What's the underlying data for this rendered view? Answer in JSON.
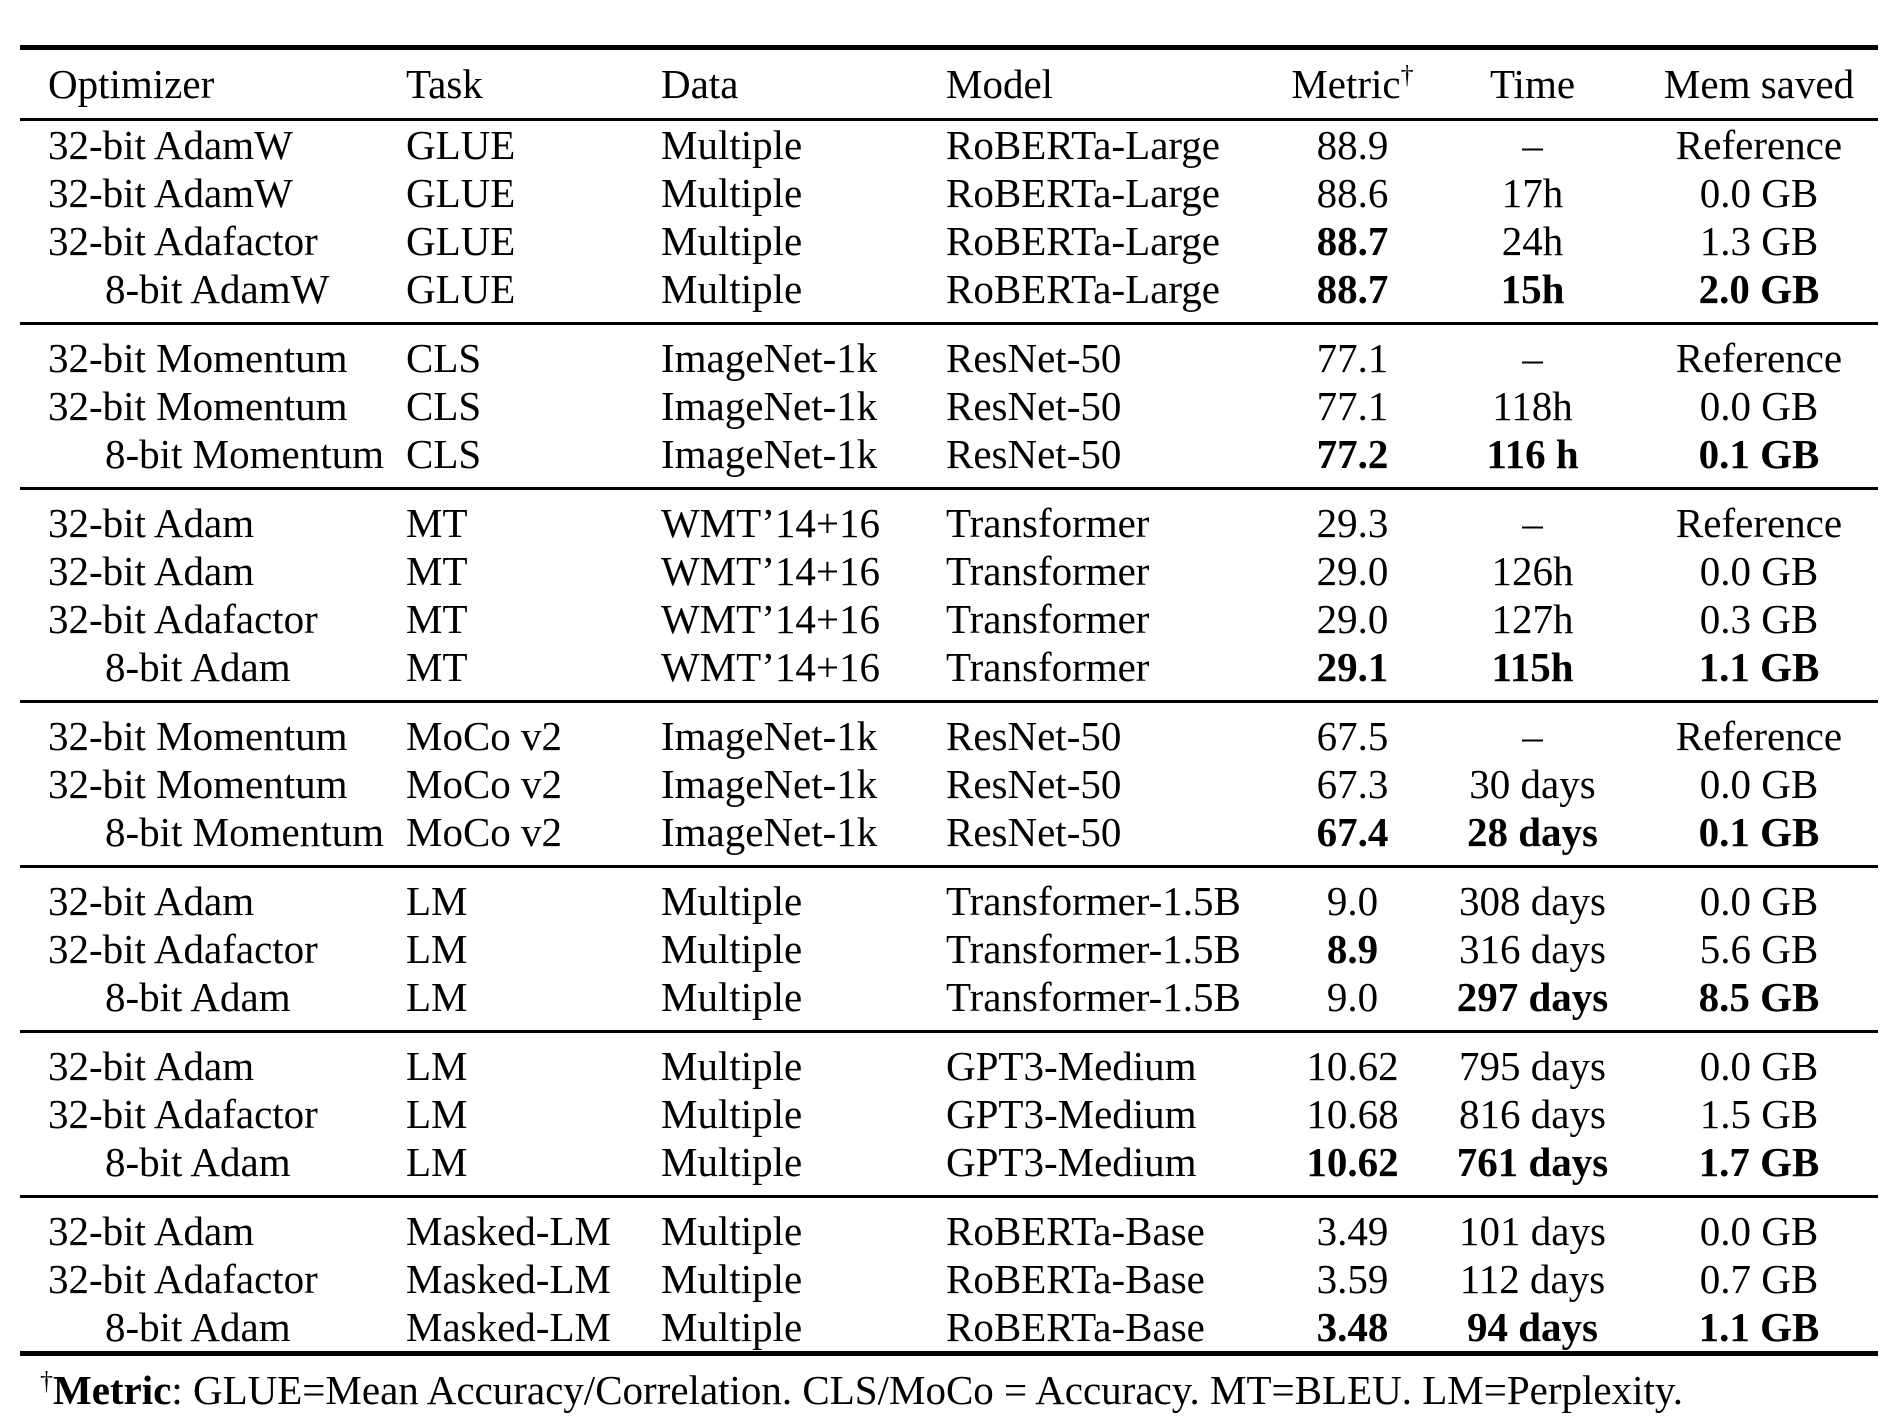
{
  "colors": {
    "text": "#000000",
    "background": "#ffffff",
    "rule": "#000000"
  },
  "table": {
    "headers": [
      "Optimizer",
      "Task",
      "Data",
      "Model",
      "Metric",
      "Time",
      "Mem saved"
    ],
    "metric_dagger": "†",
    "groups": [
      {
        "rows": [
          {
            "optimizer": "32-bit AdamW",
            "indent": false,
            "task": "GLUE",
            "data": "Multiple",
            "model": "RoBERTa-Large",
            "metric": "88.9",
            "metric_bold": false,
            "time": "–",
            "time_bold": false,
            "mem": "Reference",
            "mem_bold": false
          },
          {
            "optimizer": "32-bit AdamW",
            "indent": false,
            "task": "GLUE",
            "data": "Multiple",
            "model": "RoBERTa-Large",
            "metric": "88.6",
            "metric_bold": false,
            "time": "17h",
            "time_bold": false,
            "mem": "0.0 GB",
            "mem_bold": false
          },
          {
            "optimizer": "32-bit Adafactor",
            "indent": false,
            "task": "GLUE",
            "data": "Multiple",
            "model": "RoBERTa-Large",
            "metric": "88.7",
            "metric_bold": true,
            "time": "24h",
            "time_bold": false,
            "mem": "1.3 GB",
            "mem_bold": false
          },
          {
            "optimizer": "8-bit AdamW",
            "indent": true,
            "task": "GLUE",
            "data": "Multiple",
            "model": "RoBERTa-Large",
            "metric": "88.7",
            "metric_bold": true,
            "time": "15h",
            "time_bold": true,
            "mem": "2.0 GB",
            "mem_bold": true
          }
        ]
      },
      {
        "rows": [
          {
            "optimizer": "32-bit Momentum",
            "indent": false,
            "task": "CLS",
            "data": "ImageNet-1k",
            "model": "ResNet-50",
            "metric": "77.1",
            "metric_bold": false,
            "time": "–",
            "time_bold": false,
            "mem": "Reference",
            "mem_bold": false
          },
          {
            "optimizer": "32-bit Momentum",
            "indent": false,
            "task": "CLS",
            "data": "ImageNet-1k",
            "model": "ResNet-50",
            "metric": "77.1",
            "metric_bold": false,
            "time": "118h",
            "time_bold": false,
            "mem": "0.0 GB",
            "mem_bold": false
          },
          {
            "optimizer": "8-bit Momentum",
            "indent": true,
            "task": "CLS",
            "data": "ImageNet-1k",
            "model": "ResNet-50",
            "metric": "77.2",
            "metric_bold": true,
            "time": "116 h",
            "time_bold": true,
            "mem": "0.1 GB",
            "mem_bold": true
          }
        ]
      },
      {
        "rows": [
          {
            "optimizer": "32-bit Adam",
            "indent": false,
            "task": "MT",
            "data": "WMT’14+16",
            "model": "Transformer",
            "metric": "29.3",
            "metric_bold": false,
            "time": "–",
            "time_bold": false,
            "mem": "Reference",
            "mem_bold": false
          },
          {
            "optimizer": "32-bit Adam",
            "indent": false,
            "task": "MT",
            "data": "WMT’14+16",
            "model": "Transformer",
            "metric": "29.0",
            "metric_bold": false,
            "time": "126h",
            "time_bold": false,
            "mem": "0.0 GB",
            "mem_bold": false
          },
          {
            "optimizer": "32-bit Adafactor",
            "indent": false,
            "task": "MT",
            "data": "WMT’14+16",
            "model": "Transformer",
            "metric": "29.0",
            "metric_bold": false,
            "time": "127h",
            "time_bold": false,
            "mem": "0.3 GB",
            "mem_bold": false
          },
          {
            "optimizer": "8-bit Adam",
            "indent": true,
            "task": "MT",
            "data": "WMT’14+16",
            "model": "Transformer",
            "metric": "29.1",
            "metric_bold": true,
            "time": "115h",
            "time_bold": true,
            "mem": "1.1 GB",
            "mem_bold": true
          }
        ]
      },
      {
        "rows": [
          {
            "optimizer": "32-bit Momentum",
            "indent": false,
            "task": "MoCo v2",
            "data": "ImageNet-1k",
            "model": "ResNet-50",
            "metric": "67.5",
            "metric_bold": false,
            "time": "–",
            "time_bold": false,
            "mem": "Reference",
            "mem_bold": false
          },
          {
            "optimizer": "32-bit Momentum",
            "indent": false,
            "task": "MoCo v2",
            "data": "ImageNet-1k",
            "model": "ResNet-50",
            "metric": "67.3",
            "metric_bold": false,
            "time": "30 days",
            "time_bold": false,
            "mem": "0.0 GB",
            "mem_bold": false
          },
          {
            "optimizer": "8-bit Momentum",
            "indent": true,
            "task": "MoCo v2",
            "data": "ImageNet-1k",
            "model": "ResNet-50",
            "metric": "67.4",
            "metric_bold": true,
            "time": "28 days",
            "time_bold": true,
            "mem": "0.1 GB",
            "mem_bold": true
          }
        ]
      },
      {
        "rows": [
          {
            "optimizer": "32-bit Adam",
            "indent": false,
            "task": "LM",
            "data": "Multiple",
            "model": "Transformer-1.5B",
            "metric": "9.0",
            "metric_bold": false,
            "time": "308 days",
            "time_bold": false,
            "mem": "0.0 GB",
            "mem_bold": false
          },
          {
            "optimizer": "32-bit Adafactor",
            "indent": false,
            "task": "LM",
            "data": "Multiple",
            "model": "Transformer-1.5B",
            "metric": "8.9",
            "metric_bold": true,
            "time": "316 days",
            "time_bold": false,
            "mem": "5.6 GB",
            "mem_bold": false
          },
          {
            "optimizer": "8-bit Adam",
            "indent": true,
            "task": "LM",
            "data": "Multiple",
            "model": "Transformer-1.5B",
            "metric": "9.0",
            "metric_bold": false,
            "time": "297 days",
            "time_bold": true,
            "mem": "8.5 GB",
            "mem_bold": true
          }
        ]
      },
      {
        "rows": [
          {
            "optimizer": "32-bit Adam",
            "indent": false,
            "task": "LM",
            "data": "Multiple",
            "model": "GPT3-Medium",
            "metric": "10.62",
            "metric_bold": false,
            "time": "795 days",
            "time_bold": false,
            "mem": "0.0 GB",
            "mem_bold": false
          },
          {
            "optimizer": "32-bit Adafactor",
            "indent": false,
            "task": "LM",
            "data": "Multiple",
            "model": "GPT3-Medium",
            "metric": "10.68",
            "metric_bold": false,
            "time": "816 days",
            "time_bold": false,
            "mem": "1.5 GB",
            "mem_bold": false
          },
          {
            "optimizer": "8-bit Adam",
            "indent": true,
            "task": "LM",
            "data": "Multiple",
            "model": "GPT3-Medium",
            "metric": "10.62",
            "metric_bold": true,
            "time": "761 days",
            "time_bold": true,
            "mem": "1.7 GB",
            "mem_bold": true
          }
        ]
      },
      {
        "rows": [
          {
            "optimizer": "32-bit Adam",
            "indent": false,
            "task": "Masked-LM",
            "data": "Multiple",
            "model": "RoBERTa-Base",
            "metric": "3.49",
            "metric_bold": false,
            "time": "101 days",
            "time_bold": false,
            "mem": "0.0 GB",
            "mem_bold": false
          },
          {
            "optimizer": "32-bit Adafactor",
            "indent": false,
            "task": "Masked-LM",
            "data": "Multiple",
            "model": "RoBERTa-Base",
            "metric": "3.59",
            "metric_bold": false,
            "time": "112 days",
            "time_bold": false,
            "mem": "0.7 GB",
            "mem_bold": false
          },
          {
            "optimizer": "8-bit Adam",
            "indent": true,
            "task": "Masked-LM",
            "data": "Multiple",
            "model": "RoBERTa-Base",
            "metric": "3.48",
            "metric_bold": true,
            "time": "94 days",
            "time_bold": true,
            "mem": "1.1 GB",
            "mem_bold": true
          }
        ]
      }
    ]
  },
  "footnote": {
    "dagger": "†",
    "label": "Metric",
    "text": ": GLUE=Mean Accuracy/Correlation. CLS/MoCo = Accuracy. MT=BLEU. LM=Perplexity."
  }
}
